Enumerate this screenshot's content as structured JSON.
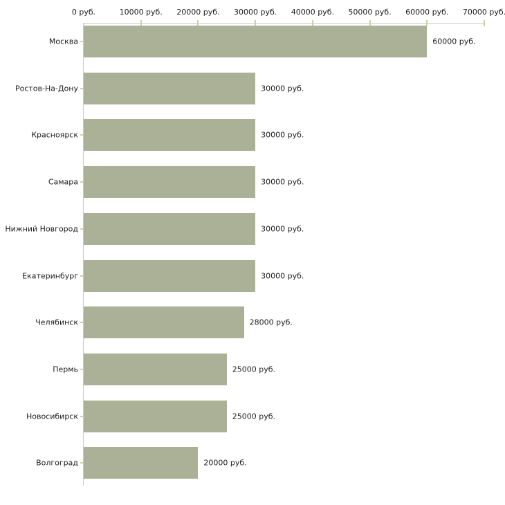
{
  "chart_data": {
    "type": "bar",
    "orientation": "horizontal",
    "title": "",
    "unit": "руб.",
    "categories": [
      "Москва",
      "Ростов-На-Дону",
      "Красноярск",
      "Самара",
      "Нижний Новгород",
      "Екатеринбург",
      "Челябинск",
      "Пермь",
      "Новосибирск",
      "Волгоград"
    ],
    "values": [
      60000,
      30000,
      30000,
      30000,
      30000,
      30000,
      28000,
      25000,
      25000,
      20000
    ],
    "value_labels": [
      "60000 руб.",
      "30000 руб.",
      "30000 руб.",
      "30000 руб.",
      "30000 руб.",
      "30000 руб.",
      "28000 руб.",
      "25000 руб.",
      "25000 руб.",
      "20000 руб."
    ],
    "x_axis": {
      "position": "top",
      "xlim": [
        0,
        70000
      ],
      "ticks": [
        0,
        10000,
        20000,
        30000,
        40000,
        50000,
        60000,
        70000
      ],
      "tick_labels": [
        "0 руб.",
        "10000 руб.",
        "20000 руб.",
        "30000 руб.",
        "40000 руб.",
        "50000 руб.",
        "60000 руб.",
        "70000 руб."
      ]
    },
    "grid": false,
    "legend": false,
    "colors": {
      "bar": "#abb197",
      "axis_line": "#c9c9c9",
      "tick_mark": "#cfcf9f",
      "text": "#1c1c1c",
      "background": "#ffffff"
    }
  }
}
